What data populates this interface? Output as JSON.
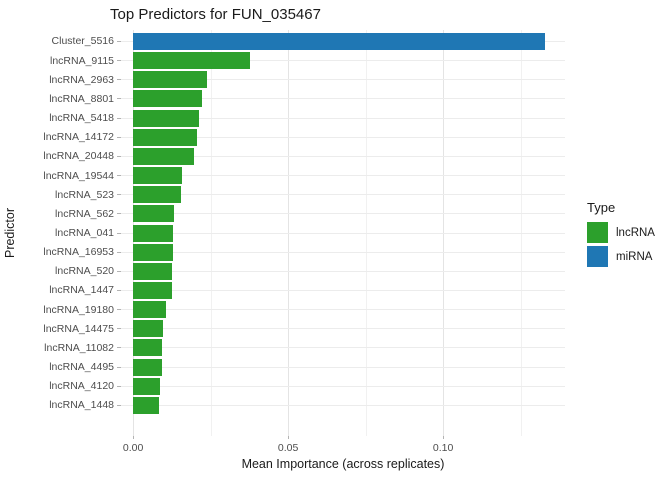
{
  "chart_data": {
    "type": "bar",
    "orientation": "horizontal",
    "title": "Top Predictors for FUN_035467",
    "xlabel": "Mean Importance (across replicates)",
    "ylabel": "Predictor",
    "categories": [
      "Cluster_5516",
      "lncRNA_9115",
      "lncRNA_2963",
      "lncRNA_8801",
      "lncRNA_5418",
      "lncRNA_14172",
      "lncRNA_20448",
      "lncRNA_19544",
      "lncRNA_523",
      "lncRNA_562",
      "lncRNA_041",
      "lncRNA_16953",
      "lncRNA_520",
      "lncRNA_1447",
      "lncRNA_19180",
      "lncRNA_14475",
      "lncRNA_11082",
      "lncRNA_4495",
      "lncRNA_4120",
      "lncRNA_1448"
    ],
    "values": [
      0.1329,
      0.0377,
      0.024,
      0.0222,
      0.0214,
      0.0205,
      0.0197,
      0.0157,
      0.0154,
      0.0131,
      0.0129,
      0.0128,
      0.0127,
      0.0125,
      0.0106,
      0.0095,
      0.0094,
      0.0093,
      0.0087,
      0.0084
    ],
    "types": [
      "miRNA",
      "lncRNA",
      "lncRNA",
      "lncRNA",
      "lncRNA",
      "lncRNA",
      "lncRNA",
      "lncRNA",
      "lncRNA",
      "lncRNA",
      "lncRNA",
      "lncRNA",
      "lncRNA",
      "lncRNA",
      "lncRNA",
      "lncRNA",
      "lncRNA",
      "lncRNA",
      "lncRNA",
      "lncRNA"
    ],
    "colors": {
      "lncRNA": "#2ca02c",
      "miRNA": "#1f77b4"
    },
    "xlim": [
      -0.0039,
      0.1393
    ],
    "x_ticks": [
      {
        "value": 0.0,
        "label": "0.00"
      },
      {
        "value": 0.05,
        "label": "0.05"
      },
      {
        "value": 0.1,
        "label": "0.10"
      }
    ],
    "grid": {
      "major": [
        0.0,
        0.05,
        0.1
      ],
      "minor": [
        0.025,
        0.075,
        0.125
      ]
    },
    "legend": {
      "title": "Type",
      "position": "right",
      "entries": [
        {
          "label": "lncRNA",
          "color": "#2ca02c"
        },
        {
          "label": "miRNA",
          "color": "#1f77b4"
        }
      ]
    },
    "background": "#ffffff"
  }
}
